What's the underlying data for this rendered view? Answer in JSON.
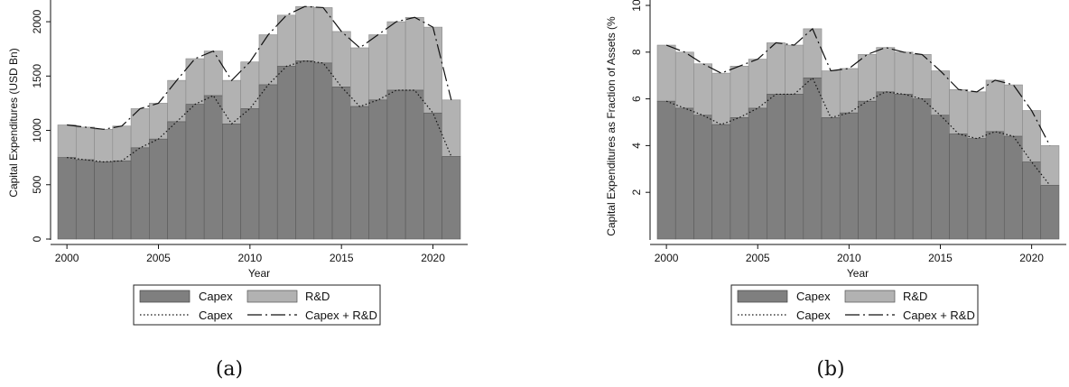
{
  "colors": {
    "capex": "#7f7f7f",
    "rd": "#b2b2b2",
    "outline": "#222222"
  },
  "chart_data": [
    {
      "type": "bar",
      "stacked": true,
      "caption": "(a)",
      "xlabel": "Year",
      "ylabel": "Capital Expenditures (USD Bn)",
      "xlim": [
        1999.5,
        2021.7
      ],
      "ylim": [
        0,
        2150
      ],
      "xticks": [
        2000,
        2005,
        2010,
        2015,
        2020
      ],
      "yticks": [
        0,
        500,
        1000,
        1500,
        2000
      ],
      "categories": [
        2000,
        2001,
        2002,
        2003,
        2004,
        2005,
        2006,
        2007,
        2008,
        2009,
        2010,
        2011,
        2012,
        2013,
        2014,
        2015,
        2016,
        2017,
        2018,
        2019,
        2020,
        2021
      ],
      "series": [
        {
          "name": "Capex",
          "kind": "bar",
          "values": [
            750,
            730,
            710,
            720,
            840,
            920,
            1080,
            1240,
            1320,
            1060,
            1200,
            1420,
            1590,
            1640,
            1620,
            1400,
            1220,
            1280,
            1370,
            1370,
            1160,
            760
          ]
        },
        {
          "name": "R&D",
          "kind": "bar",
          "stacked_total": [
            1050,
            1030,
            1010,
            1040,
            1200,
            1250,
            1460,
            1660,
            1730,
            1460,
            1630,
            1880,
            2060,
            2140,
            2130,
            1910,
            1760,
            1880,
            2000,
            2040,
            1950,
            1280
          ]
        },
        {
          "name": "Capex",
          "kind": "line",
          "style": "dotted",
          "values": [
            750,
            730,
            710,
            720,
            840,
            920,
            1080,
            1240,
            1320,
            1060,
            1200,
            1420,
            1590,
            1640,
            1620,
            1400,
            1220,
            1280,
            1370,
            1370,
            1160,
            760
          ]
        },
        {
          "name": "Capex + R&D",
          "kind": "line",
          "style": "longdash-dot",
          "values": [
            1050,
            1030,
            1010,
            1040,
            1200,
            1250,
            1460,
            1660,
            1730,
            1460,
            1630,
            1880,
            2060,
            2140,
            2130,
            1910,
            1760,
            1880,
            2000,
            2040,
            1950,
            1280
          ]
        }
      ],
      "legend": {
        "placement": "bottom",
        "entries": [
          "Capex",
          "R&D",
          "Capex",
          "Capex + R&D"
        ]
      },
      "grid": false
    },
    {
      "type": "bar",
      "stacked": true,
      "caption": "(b)",
      "xlabel": "Year",
      "ylabel": "Capital Expenditures as Fraction of Assets (%",
      "xlim": [
        1999.5,
        2021.7
      ],
      "ylim": [
        0,
        10
      ],
      "xticks": [
        2000,
        2005,
        2010,
        2015,
        2020
      ],
      "yticks": [
        2,
        4,
        6,
        8,
        10
      ],
      "categories": [
        2000,
        2001,
        2002,
        2003,
        2004,
        2005,
        2006,
        2007,
        2008,
        2009,
        2010,
        2011,
        2012,
        2013,
        2014,
        2015,
        2016,
        2017,
        2018,
        2019,
        2020,
        2021
      ],
      "series": [
        {
          "name": "Capex",
          "kind": "bar",
          "values": [
            5.9,
            5.6,
            5.3,
            4.9,
            5.2,
            5.6,
            6.2,
            6.2,
            6.9,
            5.2,
            5.4,
            5.9,
            6.3,
            6.2,
            6.0,
            5.3,
            4.5,
            4.3,
            4.6,
            4.4,
            3.3,
            2.3
          ]
        },
        {
          "name": "R&D",
          "kind": "bar",
          "stacked_total": [
            8.3,
            8.0,
            7.5,
            7.1,
            7.4,
            7.7,
            8.4,
            8.3,
            9.0,
            7.2,
            7.3,
            7.9,
            8.2,
            8.0,
            7.9,
            7.2,
            6.4,
            6.3,
            6.8,
            6.6,
            5.5,
            4.0
          ]
        },
        {
          "name": "Capex",
          "kind": "line",
          "style": "dotted",
          "values": [
            5.9,
            5.6,
            5.3,
            4.9,
            5.2,
            5.6,
            6.2,
            6.2,
            6.9,
            5.2,
            5.4,
            5.9,
            6.3,
            6.2,
            6.0,
            5.3,
            4.5,
            4.3,
            4.6,
            4.4,
            3.3,
            2.3
          ]
        },
        {
          "name": "Capex + R&D",
          "kind": "line",
          "style": "longdash-dot",
          "values": [
            8.3,
            8.0,
            7.5,
            7.1,
            7.4,
            7.7,
            8.4,
            8.3,
            9.0,
            7.2,
            7.3,
            7.9,
            8.2,
            8.0,
            7.9,
            7.2,
            6.4,
            6.3,
            6.8,
            6.6,
            5.5,
            4.0
          ]
        }
      ],
      "legend": {
        "placement": "bottom",
        "entries": [
          "Capex",
          "R&D",
          "Capex",
          "Capex + R&D"
        ]
      },
      "grid": false
    }
  ]
}
